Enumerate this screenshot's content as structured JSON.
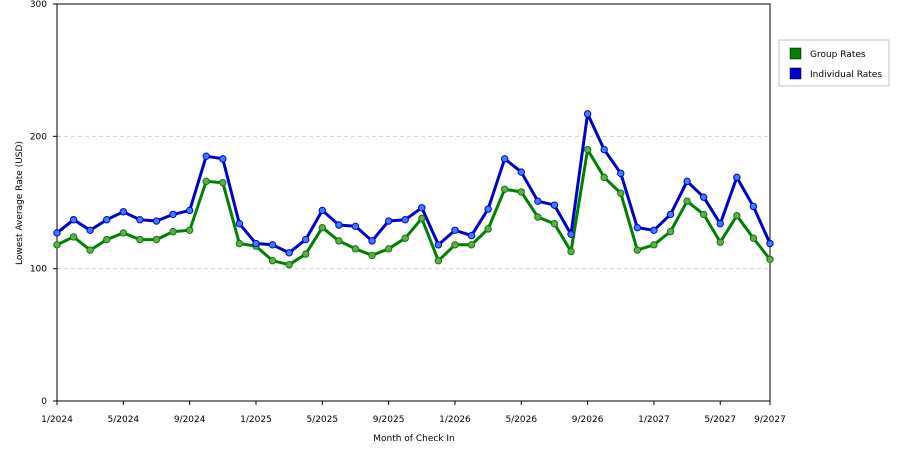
{
  "chart_data": {
    "type": "line",
    "xlabel": "Month of Check In",
    "ylabel": "Lowest Average Rate (USD)",
    "ylim": [
      0,
      300
    ],
    "yticks": [
      0,
      100,
      200,
      300
    ],
    "xticks": [
      {
        "index": 0,
        "label": "1/2024"
      },
      {
        "index": 4,
        "label": "5/2024"
      },
      {
        "index": 8,
        "label": "9/2024"
      },
      {
        "index": 12,
        "label": "1/2025"
      },
      {
        "index": 16,
        "label": "5/2025"
      },
      {
        "index": 20,
        "label": "9/2025"
      },
      {
        "index": 24,
        "label": "1/2026"
      },
      {
        "index": 28,
        "label": "5/2026"
      },
      {
        "index": 32,
        "label": "9/2026"
      },
      {
        "index": 36,
        "label": "1/2027"
      },
      {
        "index": 40,
        "label": "5/2027"
      },
      {
        "index": 43,
        "label": "9/2027"
      }
    ],
    "grid": "horizontal dashed",
    "legend_position": "right",
    "series": [
      {
        "name": "Group Rates",
        "color": "#008000",
        "marker_color": "#6aa84f",
        "values": [
          118,
          124,
          114,
          122,
          127,
          122,
          122,
          128,
          129,
          166,
          165,
          119,
          117,
          106,
          103,
          111,
          131,
          121,
          115,
          110,
          115,
          123,
          138,
          106,
          118,
          118,
          130,
          160,
          158,
          139,
          134,
          113,
          190,
          169,
          157,
          114,
          118,
          128,
          151,
          141,
          120,
          140,
          123,
          107
        ]
      },
      {
        "name": "Individual Rates",
        "color": "#0000cc",
        "marker_color": "#3d7fff",
        "values": [
          127,
          137,
          129,
          137,
          143,
          137,
          136,
          141,
          144,
          185,
          183,
          134,
          119,
          118,
          112,
          122,
          144,
          133,
          132,
          121,
          136,
          137,
          146,
          118,
          129,
          125,
          145,
          183,
          173,
          151,
          148,
          126,
          217,
          190,
          172,
          131,
          129,
          141,
          166,
          154,
          134,
          169,
          147,
          119
        ]
      }
    ]
  }
}
